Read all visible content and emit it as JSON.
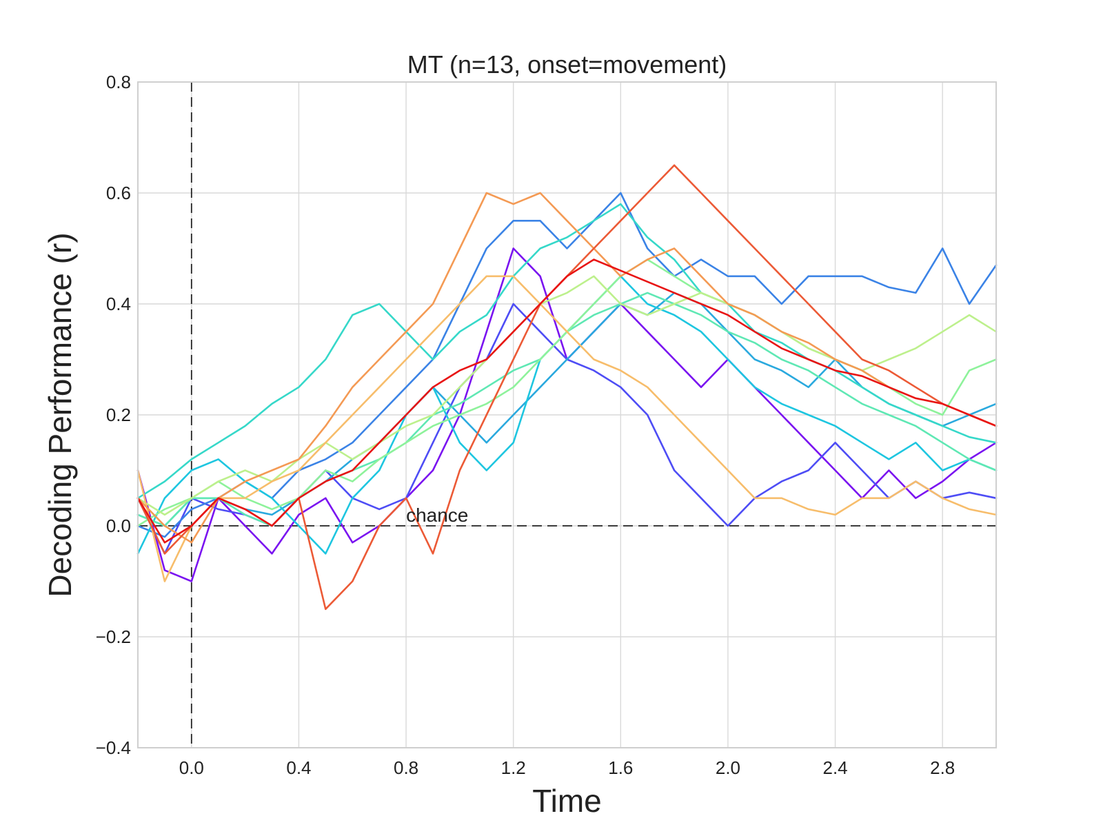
{
  "chart_data": {
    "type": "line",
    "title": "MT (n=13, onset=movement)",
    "xlabel": "Time",
    "ylabel": "Decoding Performance (r)",
    "xlim": [
      -0.2,
      3.0
    ],
    "ylim": [
      -0.4,
      0.8
    ],
    "xticks": [
      0.0,
      0.4,
      0.8,
      1.2,
      1.6,
      2.0,
      2.4,
      2.8
    ],
    "xtick_labels": [
      "0.0",
      "0.4",
      "0.8",
      "1.2",
      "1.6",
      "2.0",
      "2.4",
      "2.8"
    ],
    "yticks": [
      -0.4,
      -0.2,
      0.0,
      0.2,
      0.4,
      0.6,
      0.8
    ],
    "ytick_labels": [
      "−0.4",
      "−0.2",
      "0.0",
      "0.2",
      "0.4",
      "0.6",
      "0.8"
    ],
    "grid": true,
    "reference_lines": [
      {
        "orientation": "vertical",
        "x": 0.0,
        "style": "dashed"
      },
      {
        "orientation": "horizontal",
        "y": 0.0,
        "style": "dashed"
      }
    ],
    "annotations": [
      {
        "text": "chance",
        "x": 0.8,
        "y": 0.0
      }
    ],
    "x": [
      -0.2,
      -0.1,
      0.0,
      0.1,
      0.2,
      0.3,
      0.4,
      0.5,
      0.6,
      0.7,
      0.8,
      0.9,
      1.0,
      1.1,
      1.2,
      1.3,
      1.4,
      1.5,
      1.6,
      1.7,
      1.8,
      1.9,
      2.0,
      2.1,
      2.2,
      2.3,
      2.4,
      2.5,
      2.6,
      2.7,
      2.8,
      2.9,
      3.0
    ],
    "series": [
      {
        "color": "#7a13f0",
        "values": [
          0.1,
          -0.08,
          -0.1,
          0.05,
          0.0,
          -0.05,
          0.02,
          0.05,
          -0.03,
          0.0,
          0.05,
          0.1,
          0.2,
          0.35,
          0.5,
          0.45,
          0.3,
          0.35,
          0.4,
          0.35,
          0.3,
          0.25,
          0.3,
          0.25,
          0.2,
          0.15,
          0.1,
          0.05,
          0.1,
          0.05,
          0.08,
          0.12,
          0.15
        ]
      },
      {
        "color": "#4e4df5",
        "values": [
          0.05,
          -0.05,
          0.05,
          0.03,
          0.02,
          0.0,
          0.05,
          0.1,
          0.05,
          0.03,
          0.05,
          0.15,
          0.25,
          0.3,
          0.4,
          0.35,
          0.3,
          0.28,
          0.25,
          0.2,
          0.1,
          0.05,
          0.0,
          0.05,
          0.08,
          0.1,
          0.15,
          0.1,
          0.05,
          0.08,
          0.05,
          0.06,
          0.05
        ]
      },
      {
        "color": "#3b83e6",
        "values": [
          0.0,
          -0.02,
          0.03,
          0.05,
          0.08,
          0.05,
          0.1,
          0.12,
          0.15,
          0.2,
          0.25,
          0.3,
          0.4,
          0.5,
          0.55,
          0.55,
          0.5,
          0.55,
          0.6,
          0.5,
          0.45,
          0.48,
          0.45,
          0.45,
          0.4,
          0.45,
          0.45,
          0.45,
          0.43,
          0.42,
          0.5,
          0.4,
          0.47
        ]
      },
      {
        "color": "#2aa9de",
        "values": [
          0.02,
          0.0,
          0.05,
          0.05,
          0.03,
          0.02,
          0.05,
          0.08,
          0.12,
          0.15,
          0.2,
          0.25,
          0.2,
          0.15,
          0.2,
          0.25,
          0.3,
          0.35,
          0.4,
          0.38,
          0.42,
          0.4,
          0.35,
          0.3,
          0.28,
          0.25,
          0.3,
          0.25,
          0.22,
          0.2,
          0.18,
          0.2,
          0.22
        ]
      },
      {
        "color": "#1ec6e0",
        "values": [
          -0.05,
          0.05,
          0.1,
          0.12,
          0.08,
          0.05,
          0.0,
          -0.05,
          0.05,
          0.1,
          0.2,
          0.25,
          0.15,
          0.1,
          0.15,
          0.3,
          0.35,
          0.4,
          0.45,
          0.4,
          0.38,
          0.35,
          0.3,
          0.25,
          0.22,
          0.2,
          0.18,
          0.15,
          0.12,
          0.15,
          0.1,
          0.12,
          0.1
        ]
      },
      {
        "color": "#36d8c9",
        "values": [
          0.05,
          0.08,
          0.12,
          0.15,
          0.18,
          0.22,
          0.25,
          0.3,
          0.38,
          0.4,
          0.35,
          0.3,
          0.35,
          0.38,
          0.45,
          0.5,
          0.52,
          0.55,
          0.58,
          0.52,
          0.48,
          0.42,
          0.4,
          0.35,
          0.33,
          0.3,
          0.28,
          0.25,
          0.22,
          0.2,
          0.18,
          0.16,
          0.15
        ]
      },
      {
        "color": "#5fe8b4",
        "values": [
          0.02,
          0.0,
          0.05,
          0.05,
          0.02,
          0.0,
          0.05,
          0.08,
          0.1,
          0.12,
          0.15,
          0.2,
          0.22,
          0.25,
          0.28,
          0.3,
          0.35,
          0.38,
          0.4,
          0.42,
          0.4,
          0.38,
          0.35,
          0.33,
          0.3,
          0.28,
          0.25,
          0.22,
          0.2,
          0.18,
          0.15,
          0.12,
          0.1
        ]
      },
      {
        "color": "#8ef29b",
        "values": [
          0.0,
          0.03,
          0.05,
          0.08,
          0.05,
          0.03,
          0.05,
          0.1,
          0.08,
          0.12,
          0.15,
          0.18,
          0.2,
          0.22,
          0.25,
          0.3,
          0.35,
          0.4,
          0.45,
          0.48,
          0.45,
          0.42,
          0.4,
          0.38,
          0.35,
          0.32,
          0.3,
          0.28,
          0.25,
          0.22,
          0.2,
          0.28,
          0.3
        ]
      },
      {
        "color": "#bdf08c",
        "values": [
          0.05,
          0.02,
          0.05,
          0.08,
          0.1,
          0.08,
          0.12,
          0.15,
          0.12,
          0.15,
          0.18,
          0.2,
          0.25,
          0.3,
          0.35,
          0.4,
          0.42,
          0.45,
          0.4,
          0.38,
          0.4,
          0.42,
          0.4,
          0.38,
          0.35,
          0.32,
          0.3,
          0.28,
          0.3,
          0.32,
          0.35,
          0.38,
          0.35
        ]
      },
      {
        "color": "#f7bd6b",
        "values": [
          0.1,
          -0.1,
          0.0,
          0.05,
          0.05,
          0.08,
          0.1,
          0.15,
          0.2,
          0.25,
          0.3,
          0.35,
          0.4,
          0.45,
          0.45,
          0.4,
          0.35,
          0.3,
          0.28,
          0.25,
          0.2,
          0.15,
          0.1,
          0.05,
          0.05,
          0.03,
          0.02,
          0.05,
          0.05,
          0.08,
          0.05,
          0.03,
          0.02
        ]
      },
      {
        "color": "#f49a54",
        "values": [
          0.05,
          0.0,
          -0.03,
          0.05,
          0.08,
          0.1,
          0.12,
          0.18,
          0.25,
          0.3,
          0.35,
          0.4,
          0.5,
          0.6,
          0.58,
          0.6,
          0.55,
          0.5,
          0.45,
          0.48,
          0.5,
          0.45,
          0.4,
          0.38,
          0.35,
          0.33,
          0.3,
          0.28,
          0.25,
          0.23,
          0.22,
          0.2,
          0.18
        ]
      },
      {
        "color": "#ec5a36",
        "values": [
          0.05,
          -0.05,
          0.0,
          0.05,
          0.03,
          0.0,
          0.05,
          -0.15,
          -0.1,
          0.0,
          0.05,
          -0.05,
          0.1,
          0.2,
          0.3,
          0.4,
          0.45,
          0.5,
          0.55,
          0.6,
          0.65,
          0.6,
          0.55,
          0.5,
          0.45,
          0.4,
          0.35,
          0.3,
          0.28,
          0.25,
          0.22,
          0.2,
          0.18
        ]
      },
      {
        "color": "#e81414",
        "values": [
          0.05,
          -0.03,
          0.0,
          0.05,
          0.03,
          0.0,
          0.05,
          0.08,
          0.1,
          0.15,
          0.2,
          0.25,
          0.28,
          0.3,
          0.35,
          0.4,
          0.45,
          0.48,
          0.46,
          0.44,
          0.42,
          0.4,
          0.38,
          0.35,
          0.32,
          0.3,
          0.28,
          0.27,
          0.25,
          0.23,
          0.22,
          0.2,
          0.18
        ]
      }
    ]
  }
}
